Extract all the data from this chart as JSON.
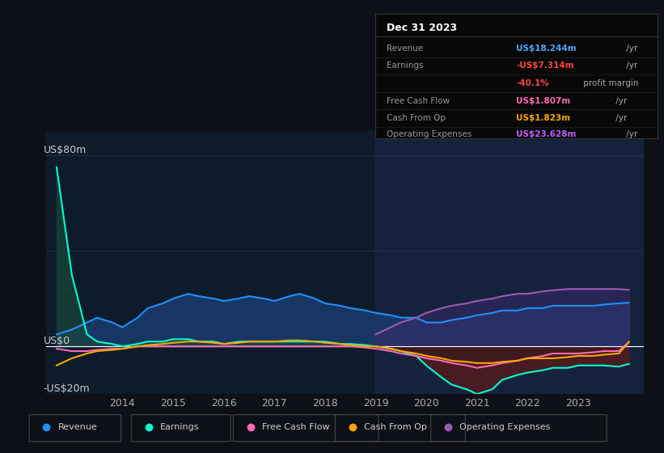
{
  "bg_color": "#0d1117",
  "plot_bg_color": "#0d1b2a",
  "ylabel_top": "US$80m",
  "ylabel_zero": "US$0",
  "ylabel_bottom": "-US$20m",
  "ylim": [
    -20,
    90
  ],
  "xlim": [
    2012.5,
    2024.3
  ],
  "xticks": [
    2014,
    2015,
    2016,
    2017,
    2018,
    2019,
    2020,
    2021,
    2022,
    2023
  ],
  "highlight_start": 2019.0,
  "highlight_end": 2024.3,
  "years": [
    2012.7,
    2013.0,
    2013.3,
    2013.5,
    2013.8,
    2014.0,
    2014.3,
    2014.5,
    2014.8,
    2015.0,
    2015.3,
    2015.5,
    2015.8,
    2016.0,
    2016.3,
    2016.5,
    2016.8,
    2017.0,
    2017.3,
    2017.5,
    2017.8,
    2018.0,
    2018.3,
    2018.5,
    2018.8,
    2019.0,
    2019.3,
    2019.5,
    2019.8,
    2020.0,
    2020.3,
    2020.5,
    2020.8,
    2021.0,
    2021.3,
    2021.5,
    2021.8,
    2022.0,
    2022.3,
    2022.5,
    2022.8,
    2023.0,
    2023.3,
    2023.5,
    2023.8,
    2024.0
  ],
  "revenue": [
    5,
    7,
    10,
    12,
    10,
    8,
    12,
    16,
    18,
    20,
    22,
    21,
    20,
    19,
    20,
    21,
    20,
    19,
    21,
    22,
    20,
    18,
    17,
    16,
    15,
    14,
    13,
    12,
    12,
    10,
    10,
    11,
    12,
    13,
    14,
    15,
    15,
    16,
    16,
    17,
    17,
    17,
    17,
    17.5,
    18,
    18.244
  ],
  "earnings": [
    75,
    30,
    5,
    2,
    1,
    0,
    1,
    2,
    2,
    3,
    3,
    2,
    2,
    1,
    2,
    2,
    2,
    2,
    2,
    2,
    2,
    2,
    1,
    1,
    0.5,
    0,
    -1,
    -2,
    -4,
    -8,
    -13,
    -16,
    -18,
    -20,
    -18,
    -14,
    -12,
    -11,
    -10,
    -9,
    -9,
    -8,
    -8,
    -8,
    -8.5,
    -7.314
  ],
  "free_cash_flow": [
    -1,
    -2,
    -2,
    -1.5,
    -1,
    -1,
    0,
    0,
    0,
    0,
    0,
    0,
    0,
    0,
    0,
    0,
    0,
    0,
    0,
    0,
    0,
    0,
    0,
    0,
    -0.5,
    -1,
    -2,
    -3,
    -4,
    -5,
    -6,
    -7,
    -8,
    -9,
    -8,
    -7,
    -6,
    -5,
    -4,
    -3,
    -3,
    -3,
    -2.5,
    -2,
    -2,
    1.807
  ],
  "cash_from_op": [
    -8,
    -5,
    -3,
    -2,
    -1.5,
    -1,
    0,
    0.5,
    1,
    1.5,
    2,
    2,
    1.5,
    1,
    1.5,
    2,
    2,
    2,
    2.5,
    2.5,
    2,
    1.5,
    1,
    0.5,
    0,
    0,
    -1,
    -2,
    -3,
    -4,
    -5,
    -6,
    -6.5,
    -7,
    -7,
    -6.5,
    -6,
    -5,
    -5,
    -5,
    -4.5,
    -4,
    -4,
    -3.5,
    -3,
    1.823
  ],
  "op_expenses": [
    0,
    0,
    0,
    0,
    0,
    0,
    0,
    0,
    0,
    0,
    0,
    0,
    0,
    0,
    0,
    0,
    0,
    0,
    0,
    0,
    0,
    0,
    0,
    0,
    0,
    5,
    8,
    10,
    12,
    14,
    16,
    17,
    18,
    19,
    20,
    21,
    22,
    22,
    23,
    23.5,
    24,
    24,
    24,
    24,
    24,
    23.628
  ],
  "colors": {
    "revenue_line": "#1e90ff",
    "earnings_line": "#00ffcc",
    "free_cash_flow_line": "#ff69b4",
    "cash_from_op_line": "#ffa500",
    "op_expenses_line": "#9b59b6",
    "revenue_fill": "#1a3a6b",
    "earnings_fill_pos": "#1a4a3a",
    "earnings_fill_neg": "#5a1a1a",
    "op_expenses_fill": "#3a2a6b",
    "cfop_neg_fill": "#3a1a1a",
    "highlight_bg": "#1a2a4a",
    "zero_line": "#ffffff",
    "grid_line": "#2a3a4a"
  },
  "legend": [
    {
      "label": "Revenue",
      "color": "#1e90ff"
    },
    {
      "label": "Earnings",
      "color": "#00ffcc"
    },
    {
      "label": "Free Cash Flow",
      "color": "#ff69b4"
    },
    {
      "label": "Cash From Op",
      "color": "#ffa500"
    },
    {
      "label": "Operating Expenses",
      "color": "#9b59b6"
    }
  ],
  "info_box": {
    "date": "Dec 31 2023",
    "rows": [
      {
        "label": "Revenue",
        "value": "US$18.244m",
        "value_color": "#4da6ff",
        "suffix": " /yr"
      },
      {
        "label": "Earnings",
        "value": "-US$7.314m",
        "value_color": "#ff4444",
        "suffix": " /yr"
      },
      {
        "label": "",
        "value": "-40.1%",
        "value_color": "#ff4444",
        "suffix": " profit margin"
      },
      {
        "label": "Free Cash Flow",
        "value": "US$1.807m",
        "value_color": "#ff69b4",
        "suffix": " /yr"
      },
      {
        "label": "Cash From Op",
        "value": "US$1.823m",
        "value_color": "#ffa500",
        "suffix": " /yr"
      },
      {
        "label": "Operating Expenses",
        "value": "US$23.628m",
        "value_color": "#bf5fff",
        "suffix": " /yr"
      }
    ]
  }
}
